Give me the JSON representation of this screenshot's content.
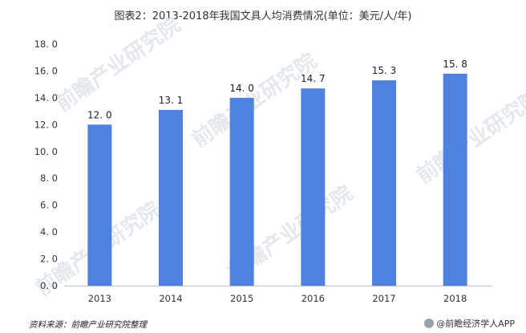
{
  "chart_data": {
    "type": "bar",
    "title": "图表2：2013-2018年我国文具人均消费情况(单位：美元/人/年)",
    "categories": [
      "2013",
      "2014",
      "2015",
      "2016",
      "2017",
      "2018"
    ],
    "values": [
      12.0,
      13.1,
      14.0,
      14.7,
      15.3,
      15.8
    ],
    "data_labels": [
      "12. 0",
      "13. 1",
      "14. 0",
      "14. 7",
      "15. 3",
      "15. 8"
    ],
    "xlabel": "",
    "ylabel": "",
    "ylim": [
      0,
      18
    ],
    "yticks": [
      0,
      2,
      4,
      6,
      8,
      10,
      12,
      14,
      16,
      18
    ],
    "ytick_labels": [
      "0. 0",
      "2. 0",
      "4. 0",
      "6. 0",
      "8. 0",
      "10. 0",
      "12. 0",
      "14. 0",
      "16. 0",
      "18. 0"
    ],
    "grid": false,
    "legend": "none",
    "bar_color": "#4f81e0",
    "axis_color": "#bfbfbf"
  },
  "footer": {
    "source": "资料来源：前瞻产业研究院整理",
    "brand": "@前瞻经济学人APP"
  },
  "watermark": {
    "text": "前瞻产业研究院"
  }
}
